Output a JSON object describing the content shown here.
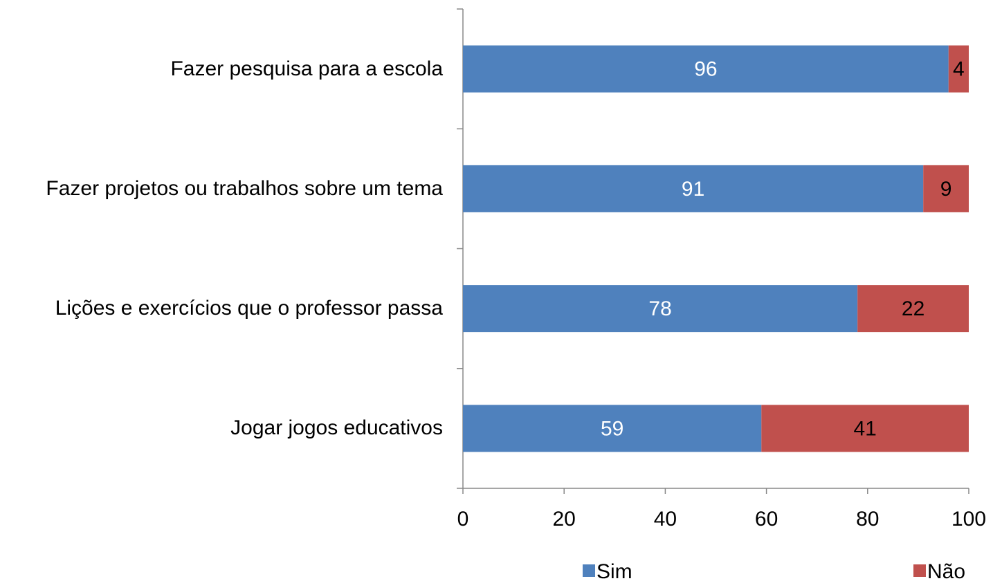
{
  "chart_data": {
    "type": "stacked-bar-horizontal",
    "categories": [
      "Fazer pesquisa para a escola",
      "Fazer projetos ou trabalhos sobre um tema",
      "Lições e exercícios que o professor passa",
      "Jogar jogos educativos"
    ],
    "series": [
      {
        "name": "Sim",
        "color": "#4f81bd",
        "values": [
          96,
          91,
          78,
          59
        ]
      },
      {
        "name": "Não",
        "color": "#c0504d",
        "values": [
          4,
          9,
          22,
          41
        ]
      }
    ],
    "xlim": [
      0,
      100
    ],
    "xticks": [
      0,
      20,
      40,
      60,
      80,
      100
    ],
    "grid": false,
    "legend": "bottom"
  }
}
